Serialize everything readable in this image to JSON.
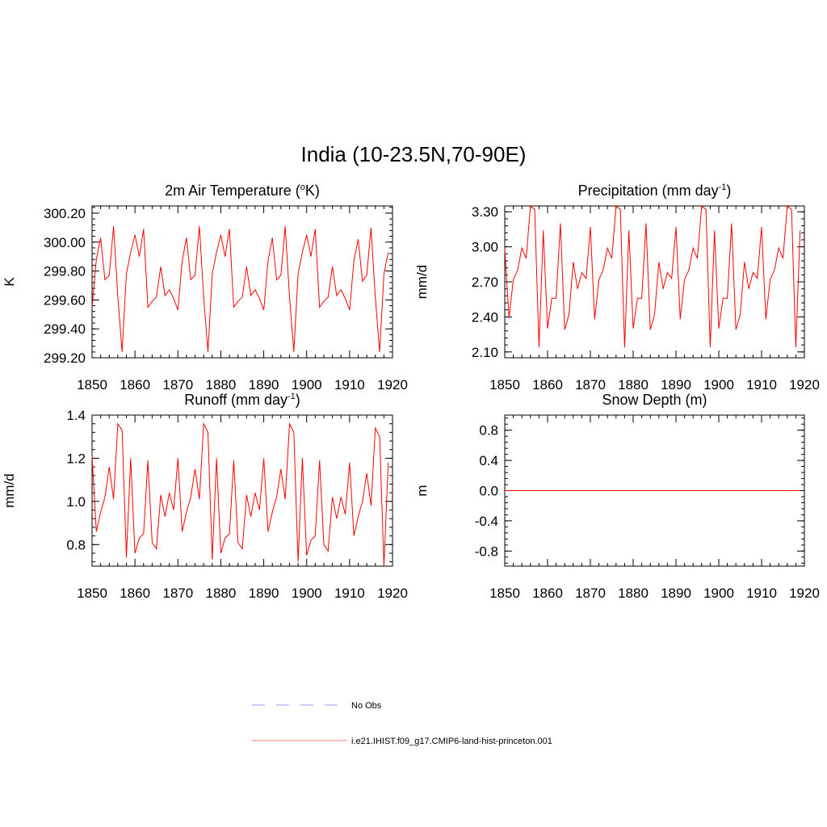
{
  "figure": {
    "title": "India (10-23.5N,70-90E)"
  },
  "legend": {
    "entries": [
      {
        "label": "No Obs",
        "style": "dashed",
        "color": "#9999ff"
      },
      {
        "label": "i.e21.IHIST.f09_g17.CMIP6-land-hist-princeton.001",
        "style": "solid",
        "color": "#ff8080"
      }
    ]
  },
  "chart_data": [
    {
      "type": "line",
      "title": "2m Air Temperature",
      "title_unit_base": "K",
      "title_unit_sup": "o",
      "ylabel": "K",
      "xlim": [
        1850,
        1920
      ],
      "ylim": [
        299.2,
        300.25
      ],
      "xticks": [
        1850,
        1860,
        1870,
        1880,
        1890,
        1900,
        1910,
        1920
      ],
      "yticks": [
        299.2,
        299.4,
        299.6,
        299.8,
        300.0,
        300.2
      ],
      "ytick_labels": [
        "299.20",
        "299.40",
        "299.60",
        "299.80",
        "300.00",
        "300.20"
      ],
      "color": "#ff0000",
      "x_start": 1850,
      "values": [
        299.55,
        299.88,
        300.03,
        299.74,
        299.77,
        300.11,
        299.62,
        299.24,
        299.78,
        299.93,
        300.05,
        299.9,
        300.09,
        299.55,
        299.59,
        299.62,
        299.83,
        299.63,
        299.67,
        299.61,
        299.53,
        299.87,
        300.03,
        299.74,
        299.77,
        300.11,
        299.62,
        299.24,
        299.78,
        299.93,
        300.05,
        299.9,
        300.09,
        299.55,
        299.59,
        299.62,
        299.83,
        299.63,
        299.67,
        299.61,
        299.53,
        299.87,
        300.03,
        299.74,
        299.77,
        300.11,
        299.62,
        299.24,
        299.78,
        299.93,
        300.05,
        299.9,
        300.09,
        299.55,
        299.59,
        299.62,
        299.83,
        299.63,
        299.67,
        299.61,
        299.53,
        299.87,
        300.02,
        299.73,
        299.77,
        300.1,
        299.62,
        299.24,
        299.78,
        299.93
      ]
    },
    {
      "type": "line",
      "title": "Precipitation (mm day",
      "title_sup": "-1",
      "title_end": ")",
      "ylabel": "mm/d",
      "xlim": [
        1850,
        1920
      ],
      "ylim": [
        2.05,
        3.35
      ],
      "xticks": [
        1850,
        1860,
        1870,
        1880,
        1890,
        1900,
        1910,
        1920
      ],
      "yticks": [
        2.1,
        2.4,
        2.7,
        3.0,
        3.3
      ],
      "ytick_labels": [
        "2.10",
        "2.40",
        "2.70",
        "3.00",
        "3.30"
      ],
      "color": "#ff0000",
      "x_start": 1850,
      "values": [
        2.98,
        2.39,
        2.72,
        2.8,
        2.99,
        2.9,
        3.35,
        3.32,
        2.14,
        3.14,
        2.3,
        2.56,
        2.56,
        3.2,
        2.29,
        2.42,
        2.87,
        2.64,
        2.78,
        2.73,
        3.17,
        2.38,
        2.72,
        2.8,
        2.99,
        2.9,
        3.35,
        3.32,
        2.14,
        3.14,
        2.3,
        2.56,
        2.56,
        3.2,
        2.29,
        2.42,
        2.87,
        2.64,
        2.78,
        2.73,
        3.17,
        2.38,
        2.72,
        2.8,
        2.99,
        2.9,
        3.35,
        3.32,
        2.14,
        3.14,
        2.3,
        2.56,
        2.56,
        3.2,
        2.29,
        2.42,
        2.87,
        2.64,
        2.78,
        2.73,
        3.17,
        2.38,
        2.72,
        2.8,
        2.99,
        2.9,
        3.35,
        3.32,
        2.14,
        3.14
      ]
    },
    {
      "type": "line",
      "title": "Runoff (mm day",
      "title_sup": "-1",
      "title_end": ")",
      "ylabel": "mm/d",
      "xlim": [
        1850,
        1920
      ],
      "ylim": [
        0.7,
        1.4
      ],
      "xticks": [
        1850,
        1860,
        1870,
        1880,
        1890,
        1900,
        1910,
        1920
      ],
      "yticks": [
        0.8,
        1.0,
        1.2,
        1.4
      ],
      "ytick_labels": [
        "0.8",
        "1.0",
        "1.2",
        "1.4"
      ],
      "color": "#ff0000",
      "x_start": 1850,
      "values": [
        1.21,
        0.86,
        0.95,
        1.02,
        1.16,
        1.01,
        1.36,
        1.33,
        0.74,
        1.2,
        0.76,
        0.83,
        0.85,
        1.19,
        0.81,
        0.78,
        1.03,
        0.93,
        1.04,
        0.96,
        1.2,
        0.86,
        0.95,
        1.02,
        1.15,
        1.01,
        1.36,
        1.32,
        0.73,
        1.2,
        0.76,
        0.83,
        0.85,
        1.19,
        0.81,
        0.78,
        1.03,
        0.93,
        1.04,
        0.96,
        1.2,
        0.86,
        0.95,
        1.02,
        1.15,
        1.01,
        1.36,
        1.32,
        0.72,
        1.2,
        0.75,
        0.82,
        0.84,
        1.19,
        0.8,
        0.77,
        1.02,
        0.92,
        1.02,
        0.94,
        1.18,
        0.84,
        0.93,
        1.0,
        1.13,
        0.98,
        1.34,
        1.3,
        0.7,
        1.18
      ]
    },
    {
      "type": "line",
      "title": "Snow Depth (m)",
      "ylabel": "m",
      "xlim": [
        1850,
        1920
      ],
      "ylim": [
        -1.0,
        1.0
      ],
      "xticks": [
        1850,
        1860,
        1870,
        1880,
        1890,
        1900,
        1910,
        1920
      ],
      "yticks": [
        -0.8,
        -0.4,
        0.0,
        0.4,
        0.8
      ],
      "ytick_labels": [
        "-0.8",
        "-0.4",
        "0.0",
        "0.4",
        "0.8"
      ],
      "color": "#ff0000",
      "x_start": 1850,
      "values": [
        0,
        0,
        0,
        0,
        0,
        0,
        0,
        0,
        0,
        0,
        0,
        0,
        0,
        0,
        0,
        0,
        0,
        0,
        0,
        0,
        0,
        0,
        0,
        0,
        0,
        0,
        0,
        0,
        0,
        0,
        0,
        0,
        0,
        0,
        0,
        0,
        0,
        0,
        0,
        0,
        0,
        0,
        0,
        0,
        0,
        0,
        0,
        0,
        0,
        0,
        0,
        0,
        0,
        0,
        0,
        0,
        0,
        0,
        0,
        0,
        0,
        0,
        0,
        0,
        0,
        0,
        0,
        0,
        0,
        0
      ]
    }
  ]
}
